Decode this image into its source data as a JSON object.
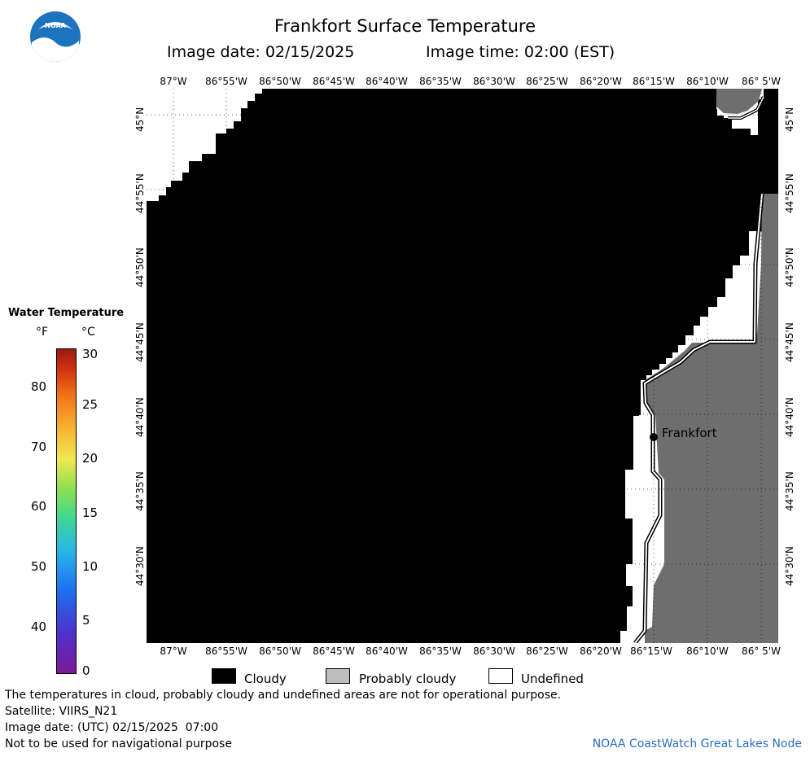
{
  "header": {
    "title": "Frankfort Surface Temperature",
    "image_date_label": "Image date: 02/15/2025",
    "image_time_label": "Image time: 02:00 (EST)"
  },
  "logo": {
    "text": "NOAA"
  },
  "map": {
    "longitude_labels": [
      "87°W",
      "86°55'W",
      "86°50'W",
      "86°45'W",
      "86°40'W",
      "86°35'W",
      "86°30'W",
      "86°25'W",
      "86°20'W",
      "86°15'W",
      "86°10'W",
      "86° 5'W"
    ],
    "latitude_labels": [
      "45°N",
      "44°55'N",
      "44°50'N",
      "44°45'N",
      "44°40'N",
      "44°35'N",
      "44°30'N"
    ],
    "place_label": "Frankfort",
    "colors": {
      "cloudy": "#000000",
      "probably_cloudy": "#6e6e6e",
      "undefined": "#ffffff"
    }
  },
  "scale": {
    "title": "Water Temperature",
    "unit_f": "°F",
    "unit_c": "°C",
    "f_ticks": [
      "80",
      "70",
      "60",
      "50",
      "40"
    ],
    "c_ticks": [
      "30",
      "25",
      "20",
      "15",
      "10",
      "5",
      "0"
    ]
  },
  "legend": {
    "cloudy": "Cloudy",
    "probably_cloudy": "Probably cloudy",
    "undefined": "Undefined"
  },
  "footer": {
    "disclaimer": "The temperatures in cloud, probably cloudy and undefined areas are not for operational purpose.",
    "satellite": "Satellite: VIIRS_N21",
    "image_date_utc": "Image date: (UTC) 02/15/2025  07:00",
    "navigation": "Not to be used for navigational purpose",
    "credit": "NOAA CoastWatch Great Lakes Node"
  }
}
